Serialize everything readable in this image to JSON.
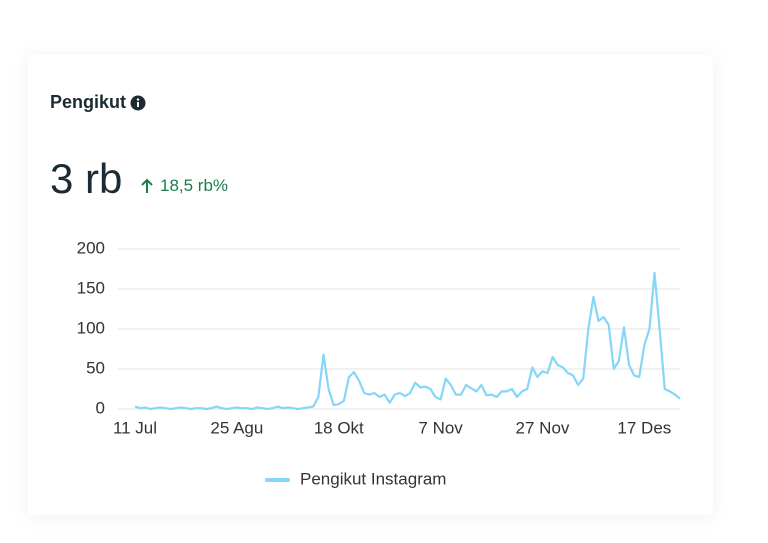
{
  "header": {
    "title": "Pengikut",
    "value": "3 rb",
    "change": "18,5 rb%"
  },
  "chart_data": {
    "type": "line",
    "categories": [
      "11 Jul",
      null,
      null,
      null,
      null,
      null,
      null,
      null,
      null,
      null,
      null,
      null,
      null,
      null,
      null,
      null,
      null,
      null,
      null,
      null,
      "25 Agu",
      null,
      null,
      null,
      null,
      null,
      null,
      null,
      null,
      null,
      null,
      null,
      null,
      null,
      null,
      null,
      null,
      null,
      null,
      null,
      "18 Okt",
      null,
      null,
      null,
      null,
      null,
      null,
      null,
      null,
      null,
      null,
      null,
      null,
      null,
      null,
      null,
      null,
      null,
      null,
      null,
      "7 Nov",
      null,
      null,
      null,
      null,
      null,
      null,
      null,
      null,
      null,
      null,
      null,
      null,
      null,
      null,
      null,
      null,
      null,
      null,
      null,
      "27 Nov",
      null,
      null,
      null,
      null,
      null,
      null,
      null,
      null,
      null,
      null,
      null,
      null,
      null,
      null,
      null,
      null,
      null,
      null,
      null,
      "17 Des",
      null,
      null,
      null,
      null,
      null,
      null,
      null
    ],
    "series": [
      {
        "name": "Pengikut Instagram",
        "color": "#85d6f9",
        "values": [
          3,
          1,
          2,
          0,
          1,
          2,
          1,
          0,
          1,
          2,
          1,
          0,
          1,
          1,
          0,
          1,
          3,
          1,
          0,
          1,
          2,
          1,
          1,
          0,
          2,
          1,
          0,
          1,
          3,
          1,
          2,
          1,
          0,
          1,
          2,
          3,
          15,
          68,
          25,
          5,
          6,
          10,
          40,
          46,
          35,
          20,
          18,
          20,
          15,
          18,
          8,
          18,
          20,
          16,
          20,
          33,
          27,
          28,
          25,
          15,
          12,
          38,
          30,
          18,
          18,
          30,
          26,
          22,
          30,
          17,
          18,
          15,
          22,
          22,
          25,
          15,
          22,
          25,
          52,
          40,
          47,
          45,
          65,
          55,
          52,
          45,
          42,
          30,
          38,
          100,
          140,
          110,
          115,
          105,
          50,
          60,
          102,
          55,
          42,
          40,
          80,
          100,
          170,
          100,
          25,
          22,
          18,
          13
        ]
      }
    ],
    "ylim": [
      0,
      200
    ],
    "yticks": [
      0,
      50,
      100,
      150,
      200
    ],
    "grid": true
  }
}
